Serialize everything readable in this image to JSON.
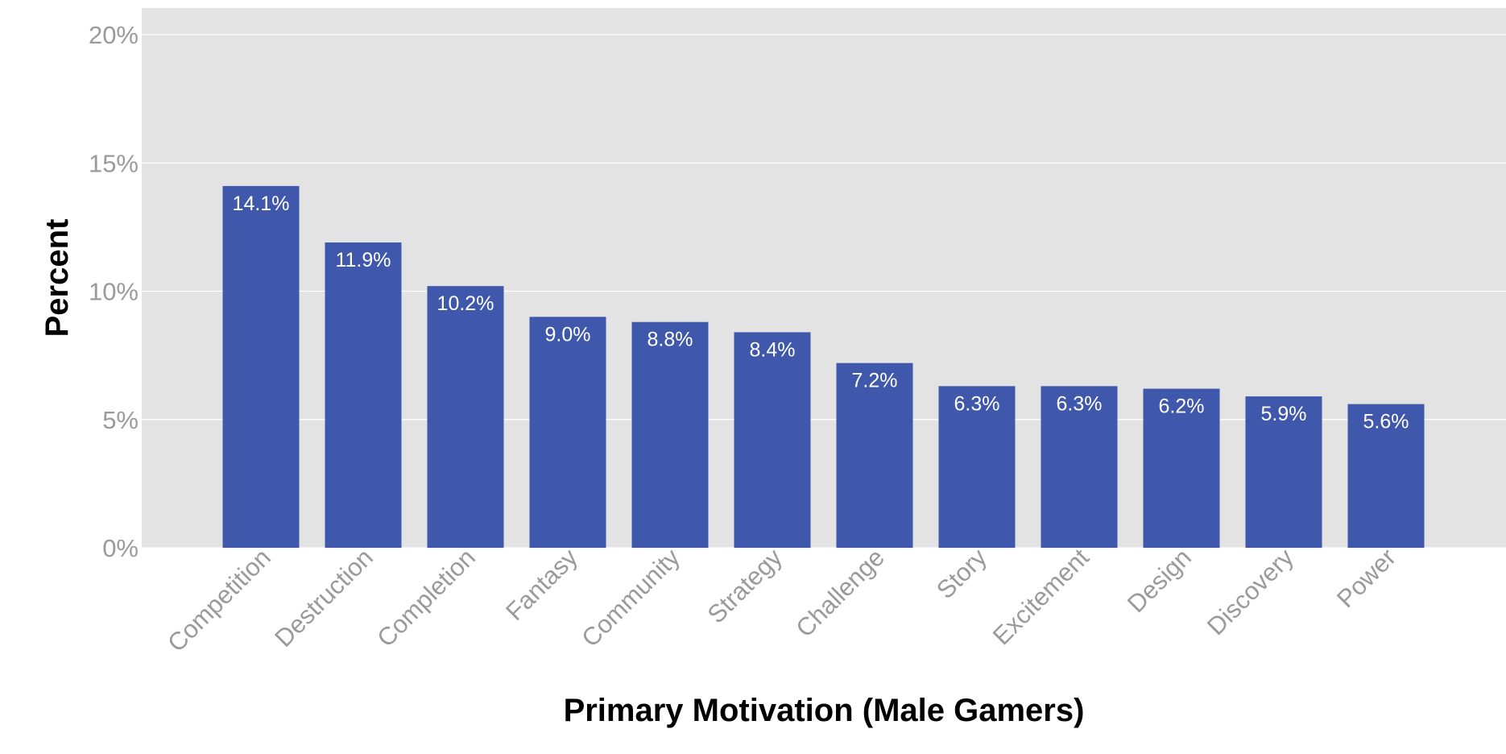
{
  "chart_data": {
    "type": "bar",
    "categories": [
      "Competition",
      "Destruction",
      "Completion",
      "Fantasy",
      "Community",
      "Strategy",
      "Challenge",
      "Story",
      "Excitement",
      "Design",
      "Discovery",
      "Power"
    ],
    "values": [
      14.1,
      11.9,
      10.2,
      9.0,
      8.8,
      8.4,
      7.2,
      6.3,
      6.3,
      6.2,
      5.9,
      5.6
    ],
    "data_labels": [
      "14.1%",
      "11.9%",
      "10.2%",
      "9.0%",
      "8.8%",
      "8.4%",
      "7.2%",
      "6.3%",
      "6.3%",
      "6.2%",
      "5.9%",
      "5.6%"
    ],
    "xlabel": "Primary Motivation (Male Gamers)",
    "ylabel": "Percent",
    "ylim": [
      0,
      20.5
    ],
    "yticks": [
      0,
      5,
      10,
      15,
      20
    ],
    "ytick_labels": [
      "0%",
      "5%",
      "10%",
      "15%",
      "20%"
    ],
    "grid": true,
    "colors": {
      "bar": "#3f58ab",
      "panel": "#e3e3e3",
      "grid": "#ffffff"
    }
  }
}
